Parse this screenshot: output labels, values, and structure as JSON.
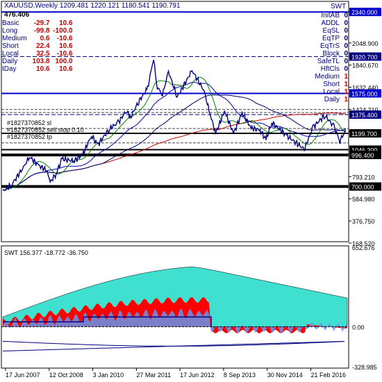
{
  "header": {
    "symbol_line": "XAUUSD,Weekly  1209.481 1220.121 1180.541 1190.791",
    "value": "476.406"
  },
  "left_table": [
    {
      "label": "Basic",
      "a": "-29.7",
      "b": "10.6"
    },
    {
      "label": "Long",
      "a": "-99.8",
      "b": "-100.0"
    },
    {
      "label": "Medium",
      "a": "0.6",
      "b": "-10.6"
    },
    {
      "label": "Short",
      "a": "22.4",
      "b": "10.6"
    },
    {
      "label": "Local",
      "a": "32.5",
      "b": "-10.6"
    },
    {
      "label": "Daily",
      "a": "103.8",
      "b": "100.0"
    },
    {
      "label": "IDay",
      "a": "10.6",
      "b": "10.6"
    }
  ],
  "right_flags": [
    {
      "label": "InitAB",
      "v": "0"
    },
    {
      "label": "ADDL",
      "v": "0"
    },
    {
      "label": "EqSL",
      "v": "0"
    },
    {
      "label": "EqTP",
      "v": "0"
    },
    {
      "label": "EqTrS",
      "v": "0"
    },
    {
      "label": "Block",
      "v": "0"
    },
    {
      "label": "SafeTL",
      "v": "0"
    },
    {
      "label": "HftCls",
      "v": "0"
    },
    {
      "label": "Medium",
      "v": "1"
    },
    {
      "label": "Short",
      "v": "1"
    },
    {
      "label": "Local",
      "v": "1"
    },
    {
      "label": "Daily",
      "v": "1"
    }
  ],
  "swt_label": "SWT",
  "order_labels": [
    "#1827370852 sl",
    "#1827370852 sell stop 0.10",
    "#1827370852 tp"
  ],
  "colors": {
    "price": "#000080",
    "ma_navy": "#000060",
    "ma_red": "#c00000",
    "level": "#0000cc",
    "black": "#000000",
    "teal": "#40e0d0",
    "red": "#ff0000",
    "blue": "#6495ed"
  },
  "chart_data": [
    {
      "type": "line",
      "title": "XAUUSD,Weekly",
      "ylim": [
        168.52,
        2400
      ],
      "price_ticks": [
        "2340.000",
        "2048.900",
        "1840.670",
        "1632.440",
        "1424.210",
        "1215.980",
        "1007.750",
        "793.210",
        "584.980",
        "376.750",
        "168.520"
      ],
      "level_labels": [
        {
          "text": "2340.000",
          "price": 2340,
          "kind": "blue"
        },
        {
          "text": "1920.700",
          "price": 1920.7,
          "kind": "navy"
        },
        {
          "text": "1575.000",
          "price": 1575,
          "kind": "blue"
        },
        {
          "text": "1375.400",
          "price": 1375.4,
          "kind": "navy"
        },
        {
          "text": "1199.700",
          "price": 1199.7,
          "kind": "black"
        },
        {
          "text": "1046.300",
          "price": 1046.3,
          "kind": "black"
        },
        {
          "text": "996.400",
          "price": 996.4,
          "kind": "black"
        },
        {
          "text": "700.000",
          "price": 700,
          "kind": "black"
        }
      ],
      "price_series": [
        [
          "2007-06",
          655
        ],
        [
          "2007-09",
          720
        ],
        [
          "2008-01",
          880
        ],
        [
          "2008-03",
          980
        ],
        [
          "2008-06",
          900
        ],
        [
          "2008-09",
          850
        ],
        [
          "2008-10",
          740
        ],
        [
          "2008-12",
          820
        ],
        [
          "2009-02",
          960
        ],
        [
          "2009-06",
          940
        ],
        [
          "2009-09",
          1000
        ],
        [
          "2009-12",
          1180
        ],
        [
          "2010-02",
          1090
        ],
        [
          "2010-06",
          1240
        ],
        [
          "2010-09",
          1300
        ],
        [
          "2010-12",
          1420
        ],
        [
          "2011-01",
          1340
        ],
        [
          "2011-04",
          1500
        ],
        [
          "2011-07",
          1620
        ],
        [
          "2011-09",
          1910
        ],
        [
          "2011-10",
          1650
        ],
        [
          "2011-12",
          1560
        ],
        [
          "2012-02",
          1780
        ],
        [
          "2012-05",
          1540
        ],
        [
          "2012-10",
          1790
        ],
        [
          "2013-02",
          1600
        ],
        [
          "2013-04",
          1390
        ],
        [
          "2013-06",
          1200
        ],
        [
          "2013-09",
          1410
        ],
        [
          "2013-12",
          1200
        ],
        [
          "2014-03",
          1390
        ],
        [
          "2014-06",
          1250
        ],
        [
          "2014-09",
          1230
        ],
        [
          "2014-11",
          1140
        ],
        [
          "2015-01",
          1300
        ],
        [
          "2015-06",
          1180
        ],
        [
          "2015-12",
          1050
        ],
        [
          "2016-03",
          1260
        ],
        [
          "2016-07",
          1370
        ],
        [
          "2016-10",
          1260
        ],
        [
          "2016-12",
          1130
        ],
        [
          "2017-02",
          1230
        ]
      ],
      "x_ticks": [
        "17 Jun 2007",
        "12 Oct 2008",
        "3 Jan 2010",
        "27 Mar 2011",
        "17 Jun 2012",
        "8 Sep 2013",
        "30 Nov 2014",
        "21 Feb 2016"
      ]
    },
    {
      "type": "area",
      "title": "SWT 156.377 -18.772 -36.750",
      "ylim": [
        -328.985,
        652.676
      ],
      "y_ticks": [
        "652.676",
        "0.00",
        "-328.985"
      ]
    }
  ]
}
